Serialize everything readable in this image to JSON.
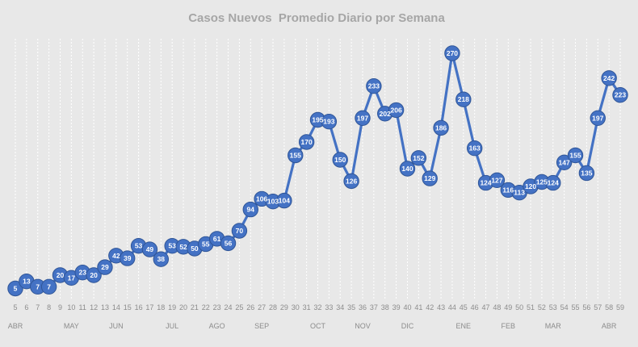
{
  "chart_data": {
    "type": "line",
    "title": "Casos Nuevos  Promedio Diario por Semana",
    "xlabel": "",
    "ylabel": "",
    "ylim": [
      0,
      300
    ],
    "grid": "vertical dotted",
    "legend": "none",
    "series_color": "#4472c4",
    "marker_edge_color": "#2f5597",
    "label_color": "#ffffff",
    "x": [
      "5",
      "6",
      "7",
      "8",
      "9",
      "10",
      "11",
      "12",
      "13",
      "14",
      "15",
      "16",
      "17",
      "18",
      "19",
      "20",
      "21",
      "22",
      "23",
      "24",
      "25",
      "26",
      "27",
      "28",
      "29",
      "30",
      "31",
      "32",
      "33",
      "34",
      "35",
      "36",
      "37",
      "38",
      "39",
      "40",
      "41",
      "42",
      "43",
      "44",
      "45",
      "46",
      "47",
      "48",
      "49",
      "50",
      "51",
      "52",
      "53",
      "54",
      "55",
      "56",
      "57",
      "58",
      "59"
    ],
    "values": [
      5,
      13,
      7,
      7,
      20,
      17,
      23,
      20,
      29,
      42,
      39,
      53,
      49,
      38,
      53,
      52,
      50,
      55,
      61,
      56,
      70,
      94,
      106,
      103,
      104,
      155,
      170,
      195,
      193,
      150,
      126,
      197,
      233,
      202,
      206,
      140,
      152,
      129,
      186,
      270,
      218,
      163,
      124,
      127,
      116,
      113,
      120,
      125,
      124,
      147,
      155,
      135,
      197,
      242,
      223
    ],
    "months": [
      {
        "label": "ABR",
        "x": "5"
      },
      {
        "label": "MAY",
        "x": "10"
      },
      {
        "label": "JUN",
        "x": "14"
      },
      {
        "label": "JUL",
        "x": "19"
      },
      {
        "label": "AGO",
        "x": "23"
      },
      {
        "label": "SEP",
        "x": "27"
      },
      {
        "label": "OCT",
        "x": "32"
      },
      {
        "label": "NOV",
        "x": "36"
      },
      {
        "label": "DIC",
        "x": "40"
      },
      {
        "label": "ENE",
        "x": "45"
      },
      {
        "label": "FEB",
        "x": "49"
      },
      {
        "label": "MAR",
        "x": "53"
      },
      {
        "label": "ABR",
        "x": "58"
      }
    ]
  }
}
